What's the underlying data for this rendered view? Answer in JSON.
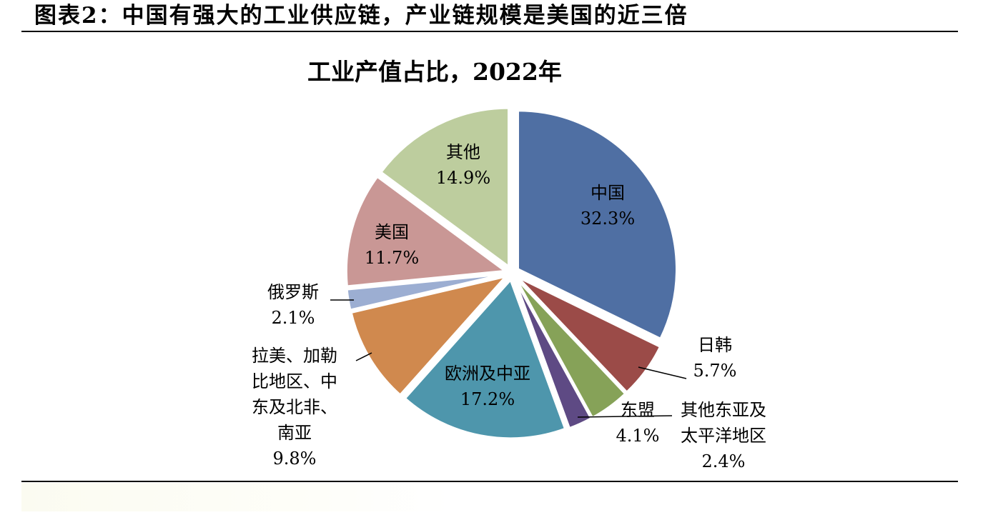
{
  "figure": {
    "title": "图表2：中国有强大的工业供应链，产业链规模是美国的近三倍"
  },
  "chart_data": {
    "type": "pie",
    "title": "工业产值占比，2022年",
    "slices": [
      {
        "id": "china",
        "label_lines": [
          "中国"
        ],
        "value": 32.3,
        "value_text": "32.3%",
        "color": "#4f6fa3"
      },
      {
        "id": "japan-korea",
        "label_lines": [
          "日韩"
        ],
        "value": 5.7,
        "value_text": "5.7%",
        "color": "#9b4b48"
      },
      {
        "id": "asean",
        "label_lines": [
          "东盟"
        ],
        "value": 4.1,
        "value_text": "4.1%",
        "color": "#86a258"
      },
      {
        "id": "other-east-asia-pacific",
        "label_lines": [
          "其他东亚及",
          "太平洋地区"
        ],
        "value": 2.4,
        "value_text": "2.4%",
        "color": "#5e4a84"
      },
      {
        "id": "europe-central-asia",
        "label_lines": [
          "欧洲及中亚"
        ],
        "value": 17.2,
        "value_text": "17.2%",
        "color": "#4e96ac"
      },
      {
        "id": "latam-mena-sa",
        "label_lines": [
          "拉美、加勒",
          "比地区、中",
          "东及北非、",
          "南亚"
        ],
        "value": 9.8,
        "value_text": "9.8%",
        "color": "#d0894e"
      },
      {
        "id": "russia",
        "label_lines": [
          "俄罗斯"
        ],
        "value": 2.1,
        "value_text": "2.1%",
        "color": "#9caed2"
      },
      {
        "id": "usa",
        "label_lines": [
          "美国"
        ],
        "value": 11.7,
        "value_text": "11.7%",
        "color": "#c99795"
      },
      {
        "id": "other",
        "label_lines": [
          "其他"
        ],
        "value": 14.9,
        "value_text": "14.9%",
        "color": "#bdcd9e"
      }
    ],
    "start_angle_deg": 0,
    "direction": "clockwise",
    "exploded": true,
    "legend": "none"
  }
}
